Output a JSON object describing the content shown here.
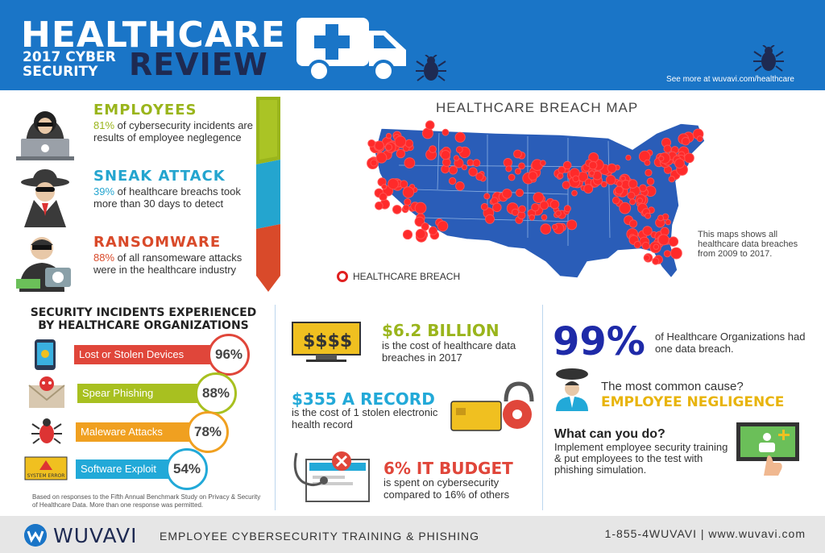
{
  "header": {
    "title": "HEALTHCARE",
    "year_line1": "2017 CYBER",
    "year_line2": "SECURITY",
    "review": "REVIEW",
    "see_more": "See more at wuvavi.com/healthcare"
  },
  "stats": [
    {
      "title": "EMPLOYEES",
      "pct": "81%",
      "text": " of cybersecurity incidents are results of employee neglegence",
      "color": "#9ab51c"
    },
    {
      "title": "SNEAK ATTACK",
      "pct": "39%",
      "text": " of healthcare breachs took more than 30 days to detect",
      "color": "#24a5cf"
    },
    {
      "title": "RANSOMWARE",
      "pct": "88%",
      "text": " of all ransomeware attacks were in the healthcare industry",
      "color": "#d94a2a"
    }
  ],
  "map": {
    "title": "HEALTHCARE BREACH MAP",
    "note": "This maps shows all healthcare data breaches from 2009 to 2017.",
    "legend": "HEALTHCARE BREACH"
  },
  "incidents": {
    "title_line1": "SECURITY INCIDENTS EXPERIENCED",
    "title_line2": "BY HEALTHCARE ORGANIZATIONS",
    "items": [
      {
        "label": "Lost or Stolen Devices",
        "value": "96%",
        "color": "#e0463a"
      },
      {
        "label": "Spear Phishing",
        "value": "88%",
        "color": "#a8c020"
      },
      {
        "label": "Maleware Attacks",
        "value": "78%",
        "color": "#f0a020"
      },
      {
        "label": "Software Exploit",
        "value": "54%",
        "color": "#22a9d8"
      }
    ],
    "footnote": "Based on responses to the Fifth Annual Benchmark Study on Privacy & Security of Healthcare Data. More than one response was permitted.",
    "error_icon_text": "SYSTEM ERROR"
  },
  "middle": {
    "billion": {
      "big": "$6.2 BILLION",
      "desc": "is the cost of healthcare data breaches in 2017",
      "color": "#9ab51c"
    },
    "record": {
      "big": "$355 A RECORD",
      "desc": "is the cost of 1 stolen electronic health record",
      "color": "#22a9d8"
    },
    "budget": {
      "big": "6% IT BUDGET",
      "desc": "is spent on cybersecurity compared to 16% of others",
      "color": "#e0463a"
    }
  },
  "right": {
    "pct": "99%",
    "pct_desc": "of Healthcare Organizations had one data breach.",
    "cause_q": "The most common cause?",
    "cause_a": "EMPLOYEE NEGLIGENCE",
    "what_title": "What can you do?",
    "what_desc": "Implement employee security training & put employees to the test with phishing simulation."
  },
  "footer": {
    "brand": "WUVAVI",
    "tagline": "EMPLOYEE CYBERSECURITY TRAINING & PHISHING",
    "contact": "1-855-4WUVAVI | www.wuvavi.com"
  }
}
